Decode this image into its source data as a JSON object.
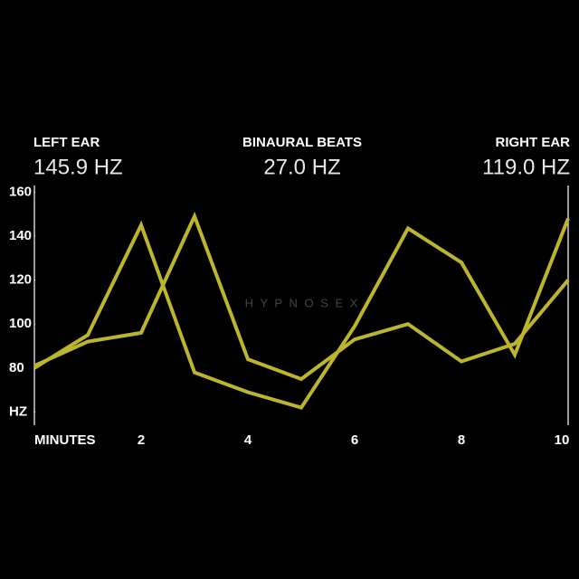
{
  "chart_data": {
    "type": "line",
    "readouts": [
      {
        "label": "LEFT EAR",
        "value": "145.9 HZ"
      },
      {
        "label": "BINAURAL BEATS",
        "value": "27.0 HZ"
      },
      {
        "label": "RIGHT EAR",
        "value": "119.0 HZ"
      }
    ],
    "watermark": "H Y P N O S E X",
    "x": [
      0,
      1,
      2,
      3,
      4,
      5,
      6,
      7,
      8,
      9,
      10
    ],
    "xlim": [
      0,
      10
    ],
    "xticks": [
      {
        "value": 0,
        "label": "MINUTES"
      },
      2,
      4,
      6,
      8,
      10
    ],
    "ylim": [
      54,
      163
    ],
    "yticks": [
      {
        "value": 60,
        "label": "HZ"
      },
      80,
      100,
      120,
      140,
      160
    ],
    "series": [
      {
        "color": "#bdb52c",
        "values": [
          80,
          95,
          145,
          78,
          69,
          62,
          99,
          143.5,
          128,
          86,
          148
        ]
      },
      {
        "color": "#bdb52c",
        "values": [
          81,
          92,
          96,
          149,
          84,
          75,
          93,
          100,
          83,
          91,
          120
        ]
      }
    ]
  }
}
